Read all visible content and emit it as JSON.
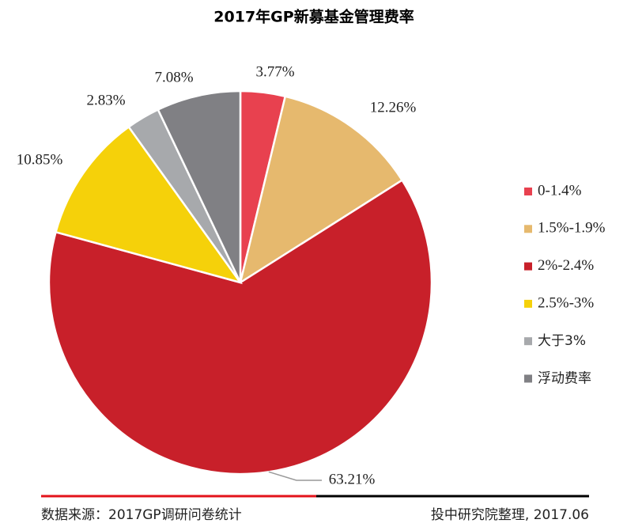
{
  "chart_data": {
    "type": "pie",
    "title": "2017年GP新募基金管理费率",
    "categories": [
      "0-1.4%",
      "1.5%-1.9%",
      "2%-2.4%",
      "2.5%-3%",
      "大于3%",
      "浮动费率"
    ],
    "values": [
      3.77,
      12.26,
      63.21,
      10.85,
      2.83,
      7.08
    ],
    "value_labels": [
      "3.77%",
      "12.26%",
      "63.21%",
      "10.85%",
      "2.83%",
      "7.08%"
    ],
    "colors": [
      "#e8414f",
      "#e6b96e",
      "#c8202a",
      "#f5d10a",
      "#a7a9ac",
      "#808084"
    ],
    "legend": "right"
  },
  "footer": {
    "source": "数据来源：2017GP调研问卷统计",
    "note": "投中研究院整理, 2017.06"
  }
}
